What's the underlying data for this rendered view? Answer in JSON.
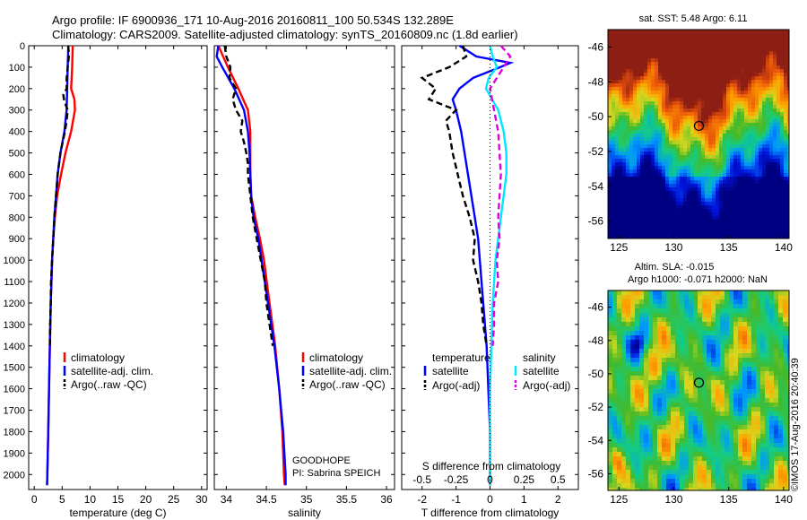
{
  "header": {
    "line1": "Argo profile: IF 6900936_171 10-Aug-2016 20160811_100 50.534S 132.289E",
    "line2": "Climatology: CARS2009. Satellite-adjusted climatology: synTS_20160809.nc (1.8d earlier)"
  },
  "chart_data": [
    {
      "type": "line",
      "xlabel": "temperature (deg C)",
      "ylabel": "",
      "xlim": [
        -1,
        31
      ],
      "ylim": [
        2070,
        0
      ],
      "xticks": [
        "0",
        "5",
        "10",
        "15",
        "20",
        "25",
        "30"
      ],
      "xtick_values": [
        0,
        5,
        10,
        15,
        20,
        25,
        30
      ],
      "yticks": [
        "0",
        "100",
        "200",
        "300",
        "400",
        "500",
        "600",
        "700",
        "800",
        "900",
        "1000",
        "1100",
        "1200",
        "1300",
        "1400",
        "1500",
        "1600",
        "1700",
        "1800",
        "1900",
        "2000"
      ],
      "ytick_values": [
        0,
        100,
        200,
        300,
        400,
        500,
        600,
        700,
        800,
        900,
        1000,
        1100,
        1200,
        1300,
        1400,
        1500,
        1600,
        1700,
        1800,
        1900,
        2000
      ],
      "legend": {
        "position": "lower-center",
        "entries": [
          "climatology",
          "satellite-adj. clim.",
          "Argo(..raw -QC)"
        ]
      },
      "series": [
        {
          "name": "climatology",
          "color": "#ff0000",
          "dash": false,
          "depth": [
            0,
            100,
            200,
            250,
            300,
            400,
            500,
            600,
            700,
            800,
            900,
            1000,
            1200,
            1400,
            1600,
            1800,
            2000,
            2050
          ],
          "values": [
            6.9,
            6.8,
            6.6,
            7.2,
            7.3,
            6.6,
            5.6,
            4.8,
            4.1,
            3.7,
            3.4,
            3.2,
            2.95,
            2.8,
            2.65,
            2.5,
            2.35,
            2.3
          ]
        },
        {
          "name": "satellite-adj. clim.",
          "color": "#0000ff",
          "dash": false,
          "depth": [
            0,
            100,
            200,
            300,
            400,
            500,
            600,
            700,
            800,
            900,
            1000,
            1200,
            1400,
            1600,
            1800,
            2000,
            2050
          ],
          "values": [
            6.1,
            6.0,
            5.9,
            5.8,
            5.4,
            4.7,
            4.2,
            3.9,
            3.6,
            3.4,
            3.2,
            2.95,
            2.8,
            2.65,
            2.5,
            2.35,
            2.3
          ]
        },
        {
          "name": "Argo(..raw -QC)",
          "color": "#000000",
          "dash": true,
          "depth": [
            0,
            50,
            100,
            150,
            200,
            230,
            260,
            300,
            350,
            400,
            450,
            500,
            600,
            700,
            800,
            900,
            1000,
            1100,
            1200,
            1300,
            1400
          ],
          "values": [
            6.1,
            6.2,
            6.0,
            5.8,
            5.8,
            5.2,
            5.4,
            6.0,
            5.8,
            5.5,
            5.1,
            4.7,
            4.2,
            3.9,
            3.6,
            3.4,
            3.2,
            3.0,
            2.95,
            2.85,
            2.8
          ]
        }
      ]
    },
    {
      "type": "line",
      "xlabel": "salinity",
      "ylabel": "",
      "xlim": [
        33.85,
        36.1
      ],
      "ylim": [
        2070,
        0
      ],
      "xticks": [
        "34",
        "34.5",
        "35",
        "35.5",
        "36"
      ],
      "xtick_values": [
        34,
        34.5,
        35,
        35.5,
        36
      ],
      "legend": {
        "position": "lower-right",
        "entries": [
          "climatology",
          "satellite-adj. clim.",
          "Argo(..raw -QC)"
        ]
      },
      "annotations": [
        "GOODHOPE",
        "PI: Sabrina SPEICH"
      ],
      "series": [
        {
          "name": "climatology",
          "color": "#ff0000",
          "dash": false,
          "depth": [
            0,
            100,
            200,
            300,
            400,
            500,
            600,
            700,
            800,
            900,
            1000,
            1200,
            1400,
            1600,
            1800,
            2000,
            2050
          ],
          "values": [
            33.9,
            34.02,
            34.15,
            34.27,
            34.3,
            34.3,
            34.3,
            34.31,
            34.36,
            34.42,
            34.47,
            34.54,
            34.61,
            34.66,
            34.7,
            34.72,
            34.73
          ]
        },
        {
          "name": "satellite-adj. clim.",
          "color": "#0000ff",
          "dash": false,
          "depth": [
            0,
            50,
            100,
            200,
            300,
            400,
            500,
            600,
            700,
            800,
            900,
            1000,
            1200,
            1400,
            1600,
            1800,
            2000,
            2050
          ],
          "values": [
            33.9,
            33.88,
            33.95,
            34.1,
            34.22,
            34.27,
            34.29,
            34.3,
            34.31,
            34.34,
            34.4,
            34.44,
            34.52,
            34.6,
            34.66,
            34.71,
            34.74,
            34.74
          ]
        },
        {
          "name": "Argo(..raw -QC)",
          "color": "#000000",
          "dash": true,
          "depth": [
            0,
            50,
            100,
            150,
            200,
            250,
            300,
            350,
            400,
            450,
            500,
            550,
            600,
            700,
            800,
            900,
            1000,
            1100,
            1200,
            1300,
            1400
          ],
          "values": [
            33.98,
            34.0,
            34.05,
            34.04,
            34.12,
            34.08,
            34.12,
            34.2,
            34.18,
            34.22,
            34.25,
            34.27,
            34.27,
            34.3,
            34.33,
            34.38,
            34.43,
            34.48,
            34.5,
            34.54,
            34.58
          ]
        }
      ]
    },
    {
      "type": "line",
      "xlabel": "T difference from climatology",
      "xlabel_top": "S difference from climatology",
      "ylabel": "",
      "xlim": [
        -2.6,
        2.6
      ],
      "ylim": [
        2070,
        0
      ],
      "xticks": [
        "-2",
        "-1",
        "0",
        "1",
        "2"
      ],
      "xtick_values": [
        -2,
        -1,
        0,
        1,
        2
      ],
      "xticks_top": [
        "-0.5",
        "-0.25",
        "0",
        "0.25",
        "0.5"
      ],
      "legend": {
        "position": "lower",
        "temperature_title": "temperature",
        "salinity_title": "salinity",
        "entries": [
          "satellite",
          "Argo(-adj)",
          "satellite",
          "Argo(-adj)"
        ]
      },
      "series": [
        {
          "name": "temperature satellite",
          "color": "#0000ff",
          "dash": false,
          "depth": [
            0,
            50,
            80,
            100,
            150,
            200,
            250,
            300,
            400,
            500,
            600,
            700,
            800,
            900,
            1000,
            1200,
            1400,
            1600,
            1800,
            2000,
            2050
          ],
          "values": [
            -0.9,
            -0.4,
            0.6,
            0.3,
            -0.5,
            -0.9,
            -1.1,
            -1.0,
            -0.85,
            -0.75,
            -0.65,
            -0.55,
            -0.45,
            -0.35,
            -0.3,
            -0.2,
            -0.1,
            -0.05,
            0.0,
            0.0,
            0.0
          ]
        },
        {
          "name": "temperature Argo(-adj)",
          "color": "#000000",
          "dash": true,
          "depth": [
            0,
            50,
            100,
            150,
            200,
            250,
            300,
            350,
            400,
            500,
            600,
            700,
            800,
            900,
            1000,
            1100,
            1200,
            1300,
            1400
          ],
          "values": [
            -0.8,
            -0.7,
            -1.2,
            -2.0,
            -1.6,
            -1.8,
            -1.0,
            -1.3,
            -1.2,
            -1.1,
            -0.95,
            -0.8,
            -0.6,
            -0.45,
            -0.5,
            -0.35,
            -0.25,
            -0.2,
            -0.1
          ]
        },
        {
          "name": "salinity satellite",
          "color": "#00e8ff",
          "dash": false,
          "depth": [
            0,
            50,
            100,
            150,
            200,
            300,
            400,
            500,
            600,
            700,
            800,
            900,
            1000,
            1200,
            1400,
            1600,
            1800,
            2000,
            2050
          ],
          "values": [
            0.0,
            0.02,
            0.05,
            -0.01,
            -0.03,
            0.06,
            0.1,
            0.12,
            0.12,
            0.1,
            0.08,
            0.06,
            0.04,
            0.02,
            0.01,
            0.0,
            0.0,
            0.0,
            0.0
          ]
        },
        {
          "name": "salinity Argo(-adj)",
          "color": "#dd00dd",
          "dash": true,
          "depth": [
            0,
            50,
            100,
            150,
            200,
            300,
            400,
            500,
            600,
            700,
            800,
            900,
            1000,
            1100,
            1200,
            1300,
            1400
          ],
          "values": [
            0.08,
            0.15,
            0.1,
            0.05,
            0.0,
            0.03,
            0.06,
            0.07,
            0.08,
            0.07,
            0.06,
            0.07,
            0.05,
            0.06,
            0.03,
            0.03,
            0.02
          ]
        }
      ]
    },
    {
      "type": "heatmap",
      "title": "sat. SST: 5.48 Argo: 6.11",
      "xlim": [
        124,
        140.5
      ],
      "ylim": [
        -57,
        -45
      ],
      "xticks": [
        "125",
        "130",
        "135",
        "140"
      ],
      "xtick_values": [
        125,
        130,
        135,
        140
      ],
      "yticks": [
        "-46",
        "-48",
        "-50",
        "-52",
        "-54",
        "-56"
      ],
      "ytick_values": [
        -46,
        -48,
        -50,
        -52,
        -54,
        -56
      ],
      "marker": {
        "lon": 132.289,
        "lat": -50.534
      }
    },
    {
      "type": "heatmap",
      "title_line1": "Altim. SLA: -0.015",
      "title_line2": "Argo h1000: -0.071 h2000: NaN",
      "xlim": [
        124,
        140.5
      ],
      "ylim": [
        -57,
        -45
      ],
      "xticks": [
        "125",
        "130",
        "135",
        "140"
      ],
      "xtick_values": [
        125,
        130,
        135,
        140
      ],
      "yticks": [
        "-46",
        "-48",
        "-50",
        "-52",
        "-54",
        "-56"
      ],
      "ytick_values": [
        -46,
        -48,
        -50,
        -52,
        -54,
        -56
      ],
      "marker": {
        "lon": 132.289,
        "lat": -50.534
      }
    }
  ],
  "credit": "©IMOS 17-Aug-2016 20:40:39"
}
